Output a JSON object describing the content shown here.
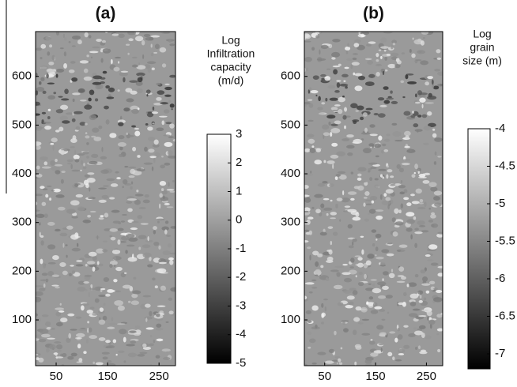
{
  "chart_data": [
    {
      "type": "heatmap",
      "title": "(a)",
      "colorbar_label": [
        "Log",
        "Infiltration",
        "capacity",
        "(m/d)"
      ],
      "colormap": "gray",
      "xlim": [
        10,
        282
      ],
      "xticks": [
        50,
        150,
        250
      ],
      "ylim": [
        6,
        692
      ],
      "yticks": [
        100,
        200,
        300,
        400,
        500,
        600
      ],
      "clim": [
        -5,
        3
      ],
      "cticks": [
        -5,
        -4,
        -3,
        -2,
        -1,
        0,
        1,
        2,
        3
      ]
    },
    {
      "type": "heatmap",
      "title": "(b)",
      "colorbar_label": [
        "Log",
        "grain",
        "size (m)"
      ],
      "colormap": "gray",
      "xlim": [
        10,
        282
      ],
      "xticks": [
        50,
        150,
        250
      ],
      "ylim": [
        6,
        692
      ],
      "yticks": [
        100,
        200,
        300,
        400,
        500,
        600
      ],
      "clim": [
        -7.2,
        -4
      ],
      "cticks": [
        -4,
        -4.5,
        -5,
        -5.5,
        -6,
        -6.5,
        -7
      ]
    }
  ]
}
